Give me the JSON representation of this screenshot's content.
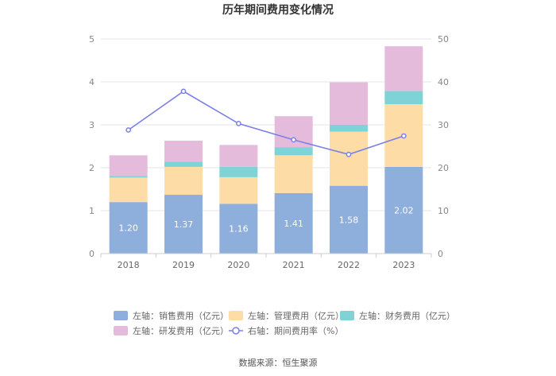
{
  "chart_data": {
    "type": "bar",
    "stacked": true,
    "title": "历年期间费用变化情况",
    "categories": [
      "2018",
      "2019",
      "2020",
      "2021",
      "2022",
      "2023"
    ],
    "series": [
      {
        "name": "左轴：销售费用（亿元）",
        "axis": "left",
        "color": "#8eaedb",
        "values": [
          1.2,
          1.37,
          1.16,
          1.41,
          1.58,
          2.02
        ],
        "show_labels": true,
        "labels": [
          "1.20",
          "1.37",
          "1.16",
          "1.41",
          "1.58",
          "2.02"
        ]
      },
      {
        "name": "左轴：管理费用（亿元）",
        "axis": "left",
        "color": "#fddca6",
        "values": [
          0.57,
          0.65,
          0.62,
          0.88,
          1.26,
          1.46
        ]
      },
      {
        "name": "左轴：财务费用（亿元）",
        "axis": "left",
        "color": "#7fd3d6",
        "values": [
          0.04,
          0.12,
          0.24,
          0.19,
          0.16,
          0.31
        ]
      },
      {
        "name": "左轴：研发费用（亿元）",
        "axis": "left",
        "color": "#e5bbdb",
        "values": [
          0.48,
          0.49,
          0.51,
          0.72,
          0.99,
          1.04
        ]
      },
      {
        "name": "右轴：期间费用率（%）",
        "axis": "right",
        "type": "line",
        "color": "#7b7fe8",
        "values": [
          28.8,
          37.8,
          30.3,
          26.5,
          23.1,
          27.4
        ]
      }
    ],
    "left_axis": {
      "ylim": [
        0,
        5
      ],
      "ticks": [
        "0",
        "1",
        "2",
        "3",
        "4",
        "5"
      ]
    },
    "right_axis": {
      "ylim": [
        0,
        50
      ],
      "ticks": [
        "0",
        "10",
        "20",
        "30",
        "40",
        "50"
      ]
    },
    "legend_position": "bottom",
    "grid": true
  },
  "source": "数据来源：恒生聚源"
}
